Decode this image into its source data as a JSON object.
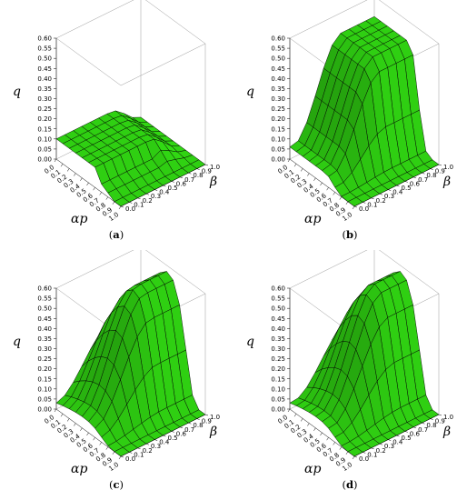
{
  "figure": {
    "panels": [
      {
        "label": "(a)",
        "label_letter": "a",
        "z_label": "q",
        "x_label": "αp",
        "y_label": "β",
        "z_ticks": [
          "0.60",
          "0.55",
          "0.50",
          "0.45",
          "0.40",
          "0.35",
          "0.30",
          "0.25",
          "0.20",
          "0.15",
          "0.10",
          "0.05",
          "0.00"
        ],
        "x_ticks": [
          "0.0",
          "0.1",
          "0.2",
          "0.3",
          "0.4",
          "0.5",
          "0.6",
          "0.7",
          "0.8",
          "0.9",
          "1.0"
        ],
        "y_ticks": [
          "0.0",
          "0.1",
          "0.2",
          "0.3",
          "0.4",
          "0.5",
          "0.6",
          "0.7",
          "0.8",
          "0.9",
          "1.0"
        ]
      },
      {
        "label": "(b)",
        "label_letter": "b",
        "z_label": "q",
        "x_label": "αp",
        "y_label": "β",
        "z_ticks": [
          "0.60",
          "0.55",
          "0.50",
          "0.45",
          "0.40",
          "0.35",
          "0.30",
          "0.25",
          "0.20",
          "0.15",
          "0.10",
          "0.05",
          "0.00"
        ],
        "x_ticks": [
          "0.0",
          "0.1",
          "0.2",
          "0.3",
          "0.4",
          "0.5",
          "0.6",
          "0.7",
          "0.8",
          "0.9",
          "1.0"
        ],
        "y_ticks": [
          "0.0",
          "0.1",
          "0.2",
          "0.3",
          "0.4",
          "0.5",
          "0.6",
          "0.7",
          "0.8",
          "0.9",
          "1.0"
        ]
      },
      {
        "label": "(c)",
        "label_letter": "c",
        "z_label": "q",
        "x_label": "αp",
        "y_label": "β",
        "z_ticks": [
          "0.60",
          "0.55",
          "0.50",
          "0.45",
          "0.40",
          "0.35",
          "0.30",
          "0.25",
          "0.20",
          "0.15",
          "0.10",
          "0.05",
          "0.00"
        ],
        "x_ticks": [
          "0.0",
          "0.1",
          "0.2",
          "0.3",
          "0.4",
          "0.5",
          "0.6",
          "0.7",
          "0.8",
          "0.9",
          "1.0"
        ],
        "y_ticks": [
          "0.0",
          "0.1",
          "0.2",
          "0.3",
          "0.4",
          "0.5",
          "0.6",
          "0.7",
          "0.8",
          "0.9",
          "1.0"
        ]
      },
      {
        "label": "(d)",
        "label_letter": "d",
        "z_label": "q",
        "x_label": "αp",
        "y_label": "β",
        "z_ticks": [
          "0.60",
          "0.55",
          "0.50",
          "0.45",
          "0.40",
          "0.35",
          "0.30",
          "0.25",
          "0.20",
          "0.15",
          "0.10",
          "0.05",
          "0.00"
        ],
        "x_ticks": [
          "0.0",
          "0.1",
          "0.2",
          "0.3",
          "0.4",
          "0.5",
          "0.6",
          "0.7",
          "0.8",
          "0.9",
          "1.0"
        ],
        "y_ticks": [
          "0.0",
          "0.1",
          "0.2",
          "0.3",
          "0.4",
          "0.5",
          "0.6",
          "0.7",
          "0.8",
          "0.9",
          "1.0"
        ]
      }
    ]
  },
  "colors": {
    "surface": "#2fcf12",
    "edge": "#000000",
    "box": "#9a9a9a"
  },
  "chart_data": [
    {
      "type": "surface",
      "title": "",
      "xlabel": "αp",
      "ylabel": "β",
      "zlabel": "q",
      "xlim": [
        0,
        1
      ],
      "ylim": [
        0,
        1
      ],
      "zlim": [
        0,
        0.6
      ],
      "x": [
        0.0,
        0.1,
        0.2,
        0.3,
        0.4,
        0.5,
        0.6,
        0.7,
        0.8,
        0.9,
        1.0
      ],
      "y": [
        0.0,
        0.1,
        0.2,
        0.3,
        0.4,
        0.5,
        0.6,
        0.7,
        0.8,
        0.9,
        1.0
      ],
      "q_by_alpha_p_at_high_beta": [
        0.1,
        0.1,
        0.1,
        0.1,
        0.1,
        0.1,
        0.1,
        0.05,
        0.0,
        0.0,
        0.0
      ],
      "plateau_q": 0.1
    },
    {
      "type": "surface",
      "title": "",
      "xlabel": "αp",
      "ylabel": "β",
      "zlabel": "q",
      "xlim": [
        0,
        1
      ],
      "ylim": [
        0,
        1
      ],
      "zlim": [
        0,
        0.6
      ],
      "x": [
        0.0,
        0.1,
        0.2,
        0.3,
        0.4,
        0.5,
        0.6,
        0.7,
        0.8,
        0.9,
        1.0
      ],
      "y": [
        0.0,
        0.1,
        0.2,
        0.3,
        0.4,
        0.5,
        0.6,
        0.7,
        0.8,
        0.9,
        1.0
      ],
      "q_by_alpha_p_at_high_beta": [
        0.5,
        0.5,
        0.5,
        0.5,
        0.5,
        0.5,
        0.45,
        0.2,
        0.02,
        0.0,
        0.0
      ],
      "plateau_q": 0.5
    },
    {
      "type": "surface",
      "title": "",
      "xlabel": "αp",
      "ylabel": "β",
      "zlabel": "q",
      "xlim": [
        0,
        1
      ],
      "ylim": [
        0,
        1
      ],
      "zlim": [
        0,
        0.6
      ],
      "x": [
        0.0,
        0.1,
        0.2,
        0.3,
        0.4,
        0.5,
        0.6,
        0.7,
        0.8,
        0.9,
        1.0
      ],
      "y": [
        0.0,
        0.1,
        0.2,
        0.3,
        0.4,
        0.5,
        0.6,
        0.7,
        0.8,
        0.9,
        1.0
      ],
      "q_by_alpha_p_at_high_beta": [
        0.3,
        0.4,
        0.48,
        0.54,
        0.57,
        0.55,
        0.45,
        0.25,
        0.05,
        0.0,
        0.0
      ],
      "plateau_q": 0.57
    },
    {
      "type": "surface",
      "title": "",
      "xlabel": "αp",
      "ylabel": "β",
      "zlabel": "q",
      "xlim": [
        0,
        1
      ],
      "ylim": [
        0,
        1
      ],
      "zlim": [
        0,
        0.6
      ],
      "x": [
        0.0,
        0.1,
        0.2,
        0.3,
        0.4,
        0.5,
        0.6,
        0.7,
        0.8,
        0.9,
        1.0
      ],
      "y": [
        0.0,
        0.1,
        0.2,
        0.3,
        0.4,
        0.5,
        0.6,
        0.7,
        0.8,
        0.9,
        1.0
      ],
      "q_by_alpha_p_at_high_beta": [
        0.3,
        0.42,
        0.5,
        0.55,
        0.57,
        0.54,
        0.44,
        0.24,
        0.05,
        0.0,
        0.0
      ],
      "plateau_q": 0.57
    }
  ]
}
